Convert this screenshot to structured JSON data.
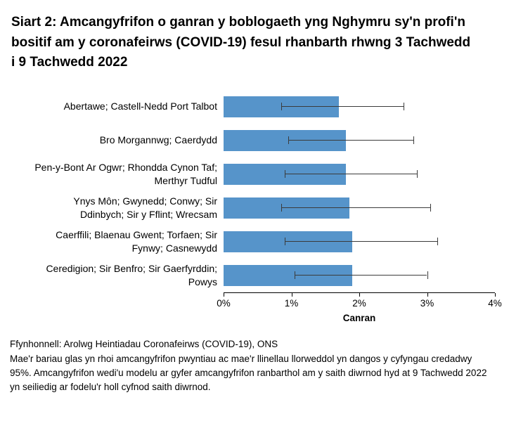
{
  "title": "Siart 2: Amcangyfrifon o ganran y boblogaeth yng Nghymru sy'n profi'n bositif am y coronafeirws (COVID-19) fesul rhanbarth rhwng 3 Tachwedd i 9 Tachwedd 2022",
  "chart_data": {
    "type": "bar",
    "orientation": "horizontal",
    "categories": [
      "Abertawe; Castell-Nedd Port Talbot",
      "Bro Morgannwg; Caerdydd",
      "Pen-y-Bont Ar Ogwr; Rhondda Cynon Taf;\nMerthyr Tudful",
      "Ynys Môn; Gwynedd; Conwy; Sir\nDdinbych; Sir y Fflint; Wrecsam",
      "Caerffili; Blaenau Gwent; Torfaen; Sir\nFynwy; Casnewydd",
      "Ceredigion; Sir Benfro; Sir Gaerfyrddin;\nPowys"
    ],
    "values": [
      1.7,
      1.8,
      1.8,
      1.85,
      1.9,
      1.9
    ],
    "ci_lower": [
      0.85,
      0.95,
      0.9,
      0.85,
      0.9,
      1.05
    ],
    "ci_upper": [
      2.65,
      2.8,
      2.85,
      3.05,
      3.15,
      3.0
    ],
    "xlabel": "Canran",
    "x_ticks": [
      "0%",
      "1%",
      "2%",
      "3%",
      "4%"
    ],
    "xlim": [
      0,
      4
    ],
    "grid": false,
    "legend": "none",
    "bar_color": "#5694ca",
    "error_color": "#3b3b3b"
  },
  "footer": {
    "source": "Ffynhonnell: Arolwg Heintiadau Coronafeirws (COVID-19), ONS",
    "note": "Mae'r bariau glas yn rhoi amcangyfrifon pwyntiau ac mae'r llinellau llorweddol yn dangos y cyfyngau credadwy 95%. Amcangyfrifon wedi'u modelu ar gyfer amcangyfrifon ranbarthol am y saith diwrnod hyd at 9 Tachwedd 2022 yn seiliedig ar fodelu'r holl cyfnod saith diwrnod."
  }
}
